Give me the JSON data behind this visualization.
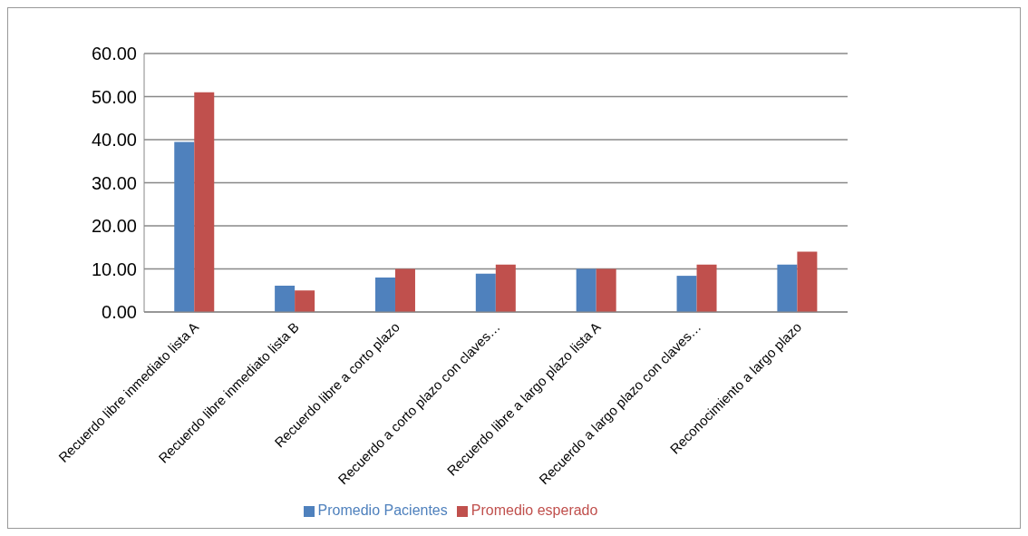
{
  "chart_data": {
    "type": "bar",
    "categories": [
      "Recuerdo libre inmediato  lista A",
      "Recuerdo libre inmediato lista B",
      "Recuerdo libre a corto plazo",
      "Recuerdo a corto plazo con claves…",
      "Recuerdo libre a largo plazo  lista A",
      "Recuerdo a largo plazo con claves…",
      "Reconocimiento a largo plazo"
    ],
    "series": [
      {
        "name": "Promedio Pacientes",
        "color": "#4f81bd",
        "values": [
          39.5,
          6.1,
          8.0,
          8.9,
          10.0,
          8.4,
          11.0
        ]
      },
      {
        "name": "Promedio esperado",
        "color": "#c0504d",
        "values": [
          51.0,
          5.0,
          10.0,
          11.0,
          10.0,
          11.0,
          14.0
        ]
      }
    ],
    "ylim": [
      0,
      60
    ],
    "yticks": [
      {
        "value": 0,
        "label": "0.00"
      },
      {
        "value": 10,
        "label": "10.00"
      },
      {
        "value": 20,
        "label": "20.00"
      },
      {
        "value": 30,
        "label": "30.00"
      },
      {
        "value": 40,
        "label": "40.00"
      },
      {
        "value": 50,
        "label": "50.00"
      },
      {
        "value": 60,
        "label": "60.00"
      }
    ],
    "grid": "y",
    "legend": "bottom"
  }
}
